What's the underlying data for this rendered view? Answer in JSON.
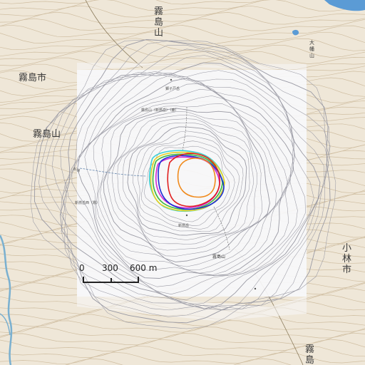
{
  "place_labels": {
    "kirishima_shi": "霧島市",
    "kirishima_yama_west": "霧島山",
    "kirishima_yama_north": "霧島山",
    "kirishima_yama_south": "霧島山",
    "kobayashi_shi": "小林市",
    "ohata_yama": "大幡山"
  },
  "small_labels": {
    "shinmoe_west": "新燃岳",
    "kirishima_center": "霧島山",
    "shishikodo": "獅子戸岳",
    "station_north": "霧島山（新燃岳）（鹿）",
    "station_west": "新燃岳西（霧）",
    "road_label": "新湯"
  },
  "scale_bar": {
    "label_0": "0",
    "label_300": "300",
    "label_600": "600 m"
  },
  "contour_colors": {
    "cyan": "#3ad0d6",
    "yellow": "#e6d21e",
    "green": "#3db83d",
    "magenta": "#d22ad2",
    "blue": "#1a2fd6",
    "red": "#e02020",
    "orange": "#f08a1c"
  },
  "colors": {
    "terrain": "#efe7d8",
    "relief_overlay": "#f7f7fa",
    "contour_line": "#c8b494",
    "water": "#5b9bd5",
    "river": "#7ab0d0"
  }
}
